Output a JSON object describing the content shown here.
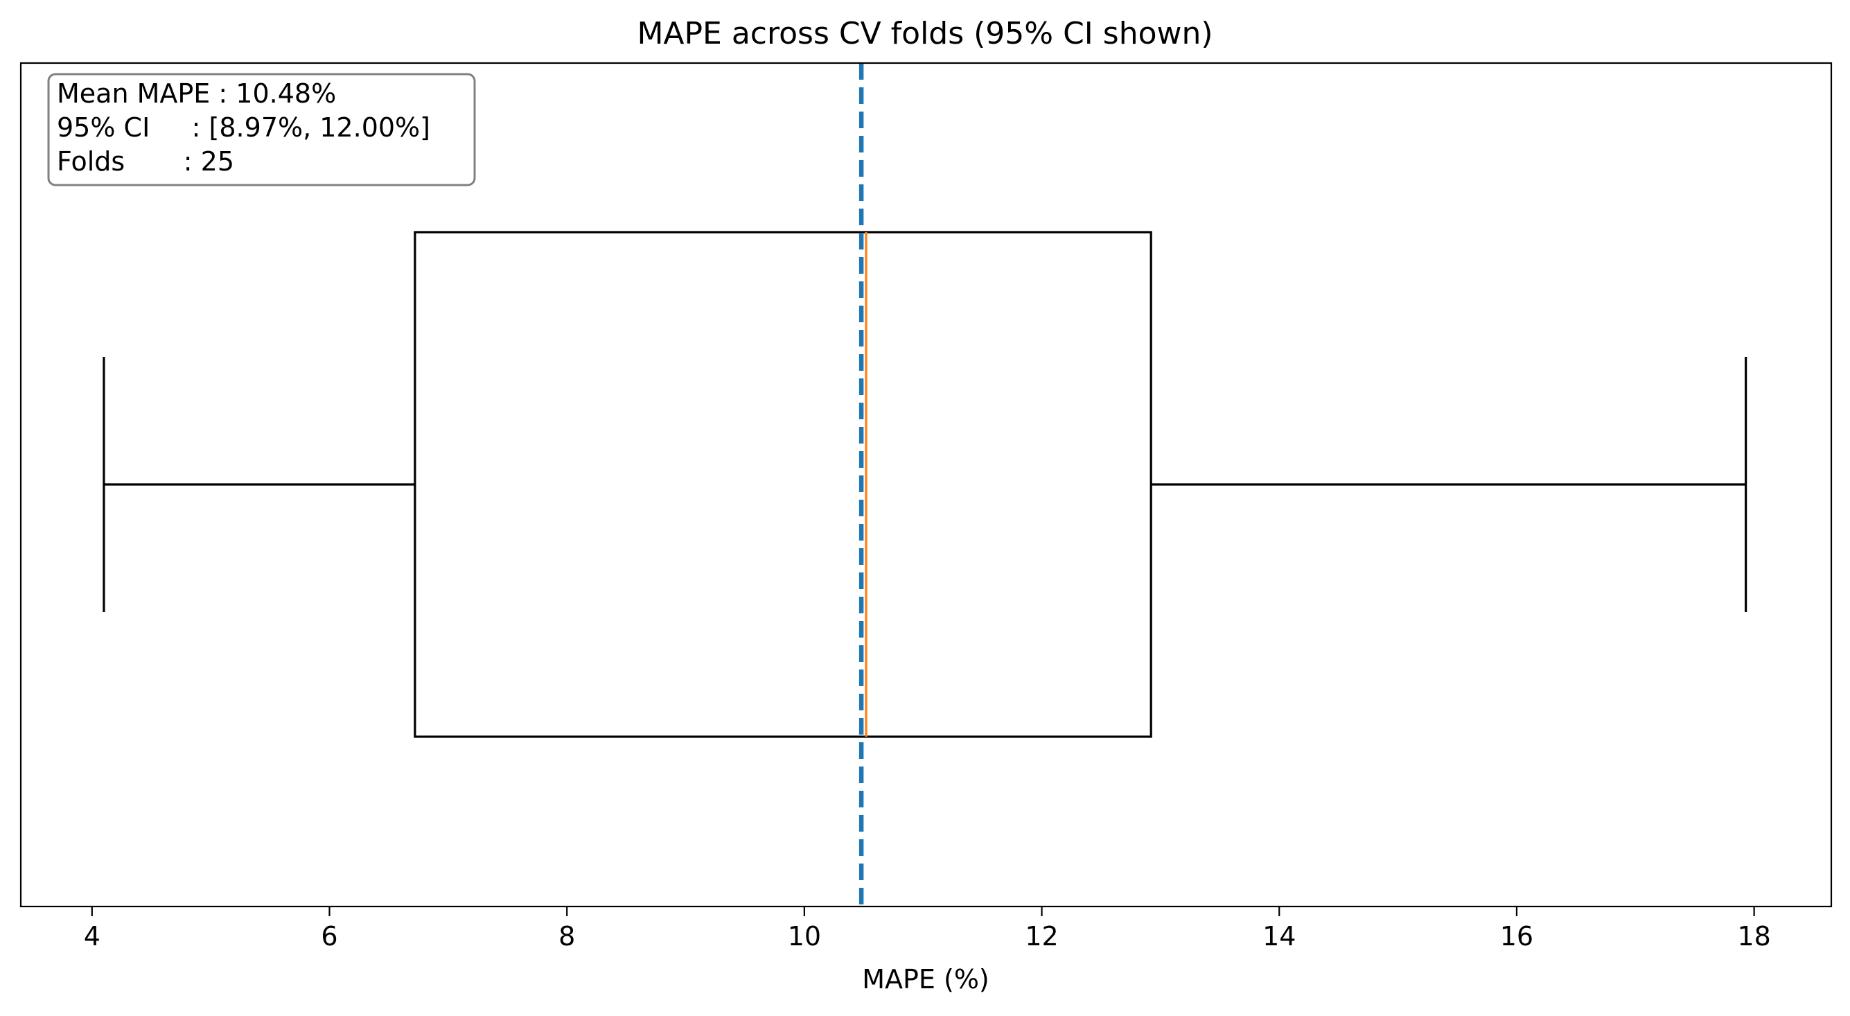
{
  "chart_data": {
    "type": "box",
    "orientation": "horizontal",
    "title": "MAPE across CV folds (95% CI shown)",
    "xlabel": "MAPE (%)",
    "ylabel": "",
    "xlim": [
      3.4,
      18.65
    ],
    "x_ticks": [
      4,
      6,
      8,
      10,
      12,
      14,
      16,
      18
    ],
    "grid": false,
    "box": {
      "whisker_low": 4.1,
      "q1": 6.72,
      "median": 10.52,
      "q3": 12.92,
      "whisker_high": 17.93
    },
    "mean_line": {
      "value": 10.48,
      "style": "dashed",
      "color": "#1f77b4"
    },
    "median_color": "#ff7f0e",
    "box_color": "#000000",
    "stats_box": {
      "position": "top-left",
      "lines": [
        "Mean MAPE : 10.48%",
        "95% CI     : [8.97%, 12.00%]",
        "Folds       : 25"
      ]
    }
  }
}
